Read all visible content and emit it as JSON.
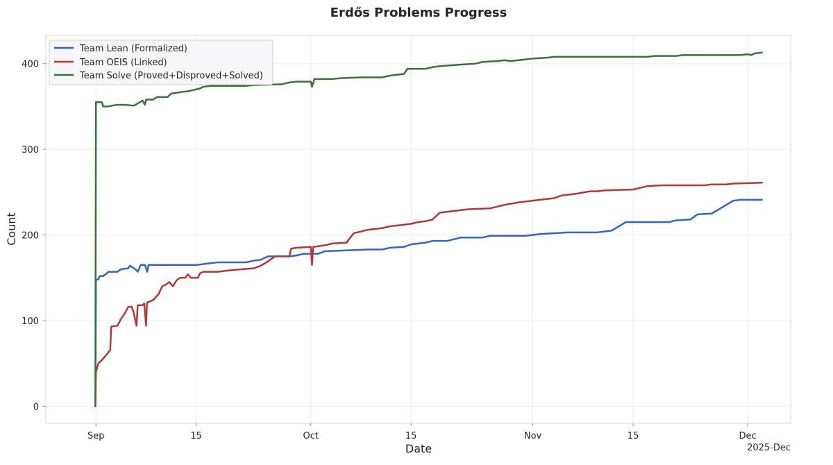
{
  "chart_data": {
    "type": "line",
    "title": "Erdős Problems Progress",
    "xlabel": "Date",
    "ylabel": "Count",
    "x_offset_label": "2025-Dec",
    "x_range": [
      "2025-08-25",
      "2025-12-07"
    ],
    "ylim": [
      -20,
      433
    ],
    "grid": true,
    "legend_position": "top-left",
    "x_ticks": [
      {
        "date": "2025-09-01",
        "label": "Sep"
      },
      {
        "date": "2025-09-15",
        "label": "15"
      },
      {
        "date": "2025-10-01",
        "label": "Oct"
      },
      {
        "date": "2025-10-15",
        "label": "15"
      },
      {
        "date": "2025-11-01",
        "label": "Nov"
      },
      {
        "date": "2025-11-15",
        "label": "15"
      },
      {
        "date": "2025-12-01",
        "label": "Dec"
      }
    ],
    "y_ticks": [
      0,
      100,
      200,
      300,
      400
    ],
    "series": [
      {
        "name": "Team Lean (Formalized)",
        "color": "#2f65c8",
        "points": [
          [
            "2025-08-31T22:00",
            0
          ],
          [
            "2025-09-01T00:00",
            148
          ],
          [
            "2025-09-01T08:00",
            148
          ],
          [
            "2025-09-01T12:00",
            152
          ],
          [
            "2025-09-02T00:00",
            152
          ],
          [
            "2025-09-02T12:00",
            155
          ],
          [
            "2025-09-02T18:00",
            157
          ],
          [
            "2025-09-04T00:00",
            157
          ],
          [
            "2025-09-04T12:00",
            160
          ],
          [
            "2025-09-05T12:00",
            161
          ],
          [
            "2025-09-05T18:00",
            164
          ],
          [
            "2025-09-06T12:00",
            160
          ],
          [
            "2025-09-06T20:00",
            157
          ],
          [
            "2025-09-07T06:00",
            165
          ],
          [
            "2025-09-07T20:00",
            165
          ],
          [
            "2025-09-08T04:00",
            157
          ],
          [
            "2025-09-08T08:00",
            165
          ],
          [
            "2025-09-15T00:00",
            165
          ],
          [
            "2025-09-16T00:00",
            166
          ],
          [
            "2025-09-17T00:00",
            167
          ],
          [
            "2025-09-18T00:00",
            168
          ],
          [
            "2025-09-22T00:00",
            168
          ],
          [
            "2025-09-23T00:00",
            170
          ],
          [
            "2025-09-24T00:00",
            171
          ],
          [
            "2025-09-25T00:00",
            175
          ],
          [
            "2025-09-28T00:00",
            175
          ],
          [
            "2025-09-29T00:00",
            176
          ],
          [
            "2025-09-30T00:00",
            178
          ],
          [
            "2025-10-02T00:00",
            178
          ],
          [
            "2025-10-03T00:00",
            181
          ],
          [
            "2025-10-06T00:00",
            182
          ],
          [
            "2025-10-09T00:00",
            183
          ],
          [
            "2025-10-11T00:00",
            183
          ],
          [
            "2025-10-12T00:00",
            185
          ],
          [
            "2025-10-14T00:00",
            186
          ],
          [
            "2025-10-15T00:00",
            189
          ],
          [
            "2025-10-17T00:00",
            191
          ],
          [
            "2025-10-18T00:00",
            193
          ],
          [
            "2025-10-20T00:00",
            193
          ],
          [
            "2025-10-22T00:00",
            197
          ],
          [
            "2025-10-25T00:00",
            197
          ],
          [
            "2025-10-26T00:00",
            199
          ],
          [
            "2025-10-31T00:00",
            199
          ],
          [
            "2025-11-02T00:00",
            201
          ],
          [
            "2025-11-04T00:00",
            202
          ],
          [
            "2025-11-06T00:00",
            203
          ],
          [
            "2025-11-10T00:00",
            203
          ],
          [
            "2025-11-12T00:00",
            205
          ],
          [
            "2025-11-13T00:00",
            210
          ],
          [
            "2025-11-14T00:00",
            215
          ],
          [
            "2025-11-20T00:00",
            215
          ],
          [
            "2025-11-21T00:00",
            217
          ],
          [
            "2025-11-23T00:00",
            218
          ],
          [
            "2025-11-24T00:00",
            224
          ],
          [
            "2025-11-26T00:00",
            225
          ],
          [
            "2025-11-27T00:00",
            230
          ],
          [
            "2025-11-28T00:00",
            235
          ],
          [
            "2025-11-29T00:00",
            240
          ],
          [
            "2025-11-30T00:00",
            241
          ],
          [
            "2025-12-03T00:00",
            241
          ]
        ]
      },
      {
        "name": "Team OEIS (Linked)",
        "color": "#b93434",
        "points": [
          [
            "2025-08-31T22:00",
            0
          ],
          [
            "2025-09-01T00:00",
            40
          ],
          [
            "2025-09-01T08:00",
            50
          ],
          [
            "2025-09-01T20:00",
            54
          ],
          [
            "2025-09-02T06:00",
            58
          ],
          [
            "2025-09-02T16:00",
            62
          ],
          [
            "2025-09-03T00:00",
            66
          ],
          [
            "2025-09-03T03:00",
            93
          ],
          [
            "2025-09-04T00:00",
            94
          ],
          [
            "2025-09-04T12:00",
            102
          ],
          [
            "2025-09-05T00:00",
            108
          ],
          [
            "2025-09-05T12:00",
            116
          ],
          [
            "2025-09-06T00:00",
            116
          ],
          [
            "2025-09-06T06:00",
            110
          ],
          [
            "2025-09-06T16:00",
            94
          ],
          [
            "2025-09-06T20:00",
            118
          ],
          [
            "2025-09-07T12:00",
            118
          ],
          [
            "2025-09-07T18:00",
            120
          ],
          [
            "2025-09-08T00:00",
            94
          ],
          [
            "2025-09-08T03:00",
            121
          ],
          [
            "2025-09-09T00:00",
            124
          ],
          [
            "2025-09-09T18:00",
            131
          ],
          [
            "2025-09-10T06:00",
            140
          ],
          [
            "2025-09-10T18:00",
            142
          ],
          [
            "2025-09-11T06:00",
            145
          ],
          [
            "2025-09-11T18:00",
            140
          ],
          [
            "2025-09-12T06:00",
            147
          ],
          [
            "2025-09-12T18:00",
            150
          ],
          [
            "2025-09-13T12:00",
            150
          ],
          [
            "2025-09-13T20:00",
            154
          ],
          [
            "2025-09-14T06:00",
            150
          ],
          [
            "2025-09-15T06:00",
            150
          ],
          [
            "2025-09-15T12:00",
            155
          ],
          [
            "2025-09-16T00:00",
            157
          ],
          [
            "2025-09-18T00:00",
            157
          ],
          [
            "2025-09-20T00:00",
            159
          ],
          [
            "2025-09-23T00:00",
            161
          ],
          [
            "2025-09-24T00:00",
            164
          ],
          [
            "2025-09-25T00:00",
            169
          ],
          [
            "2025-09-26T00:00",
            175
          ],
          [
            "2025-09-28T00:00",
            175
          ],
          [
            "2025-09-28T06:00",
            184
          ],
          [
            "2025-09-29T00:00",
            185
          ],
          [
            "2025-10-01T00:00",
            186
          ],
          [
            "2025-10-01T04:00",
            165
          ],
          [
            "2025-10-01T08:00",
            186
          ],
          [
            "2025-10-03T00:00",
            188
          ],
          [
            "2025-10-04T00:00",
            190
          ],
          [
            "2025-10-06T00:00",
            191
          ],
          [
            "2025-10-06T12:00",
            197
          ],
          [
            "2025-10-07T00:00",
            202
          ],
          [
            "2025-10-08T00:00",
            204
          ],
          [
            "2025-10-09T00:00",
            206
          ],
          [
            "2025-10-11T00:00",
            208
          ],
          [
            "2025-10-12T00:00",
            210
          ],
          [
            "2025-10-14T00:00",
            212
          ],
          [
            "2025-10-15T00:00",
            213
          ],
          [
            "2025-10-16T00:00",
            215
          ],
          [
            "2025-10-17T00:00",
            216
          ],
          [
            "2025-10-18T00:00",
            218
          ],
          [
            "2025-10-19T00:00",
            226
          ],
          [
            "2025-10-20T00:00",
            227
          ],
          [
            "2025-10-21T00:00",
            228
          ],
          [
            "2025-10-23T00:00",
            230
          ],
          [
            "2025-10-26T00:00",
            231
          ],
          [
            "2025-10-27T00:00",
            233
          ],
          [
            "2025-10-28T00:00",
            235
          ],
          [
            "2025-10-30T00:00",
            238
          ],
          [
            "2025-10-31T00:00",
            239
          ],
          [
            "2025-11-01T00:00",
            240
          ],
          [
            "2025-11-02T00:00",
            241
          ],
          [
            "2025-11-04T00:00",
            243
          ],
          [
            "2025-11-05T00:00",
            246
          ],
          [
            "2025-11-06T00:00",
            247
          ],
          [
            "2025-11-07T00:00",
            248
          ],
          [
            "2025-11-09T00:00",
            251
          ],
          [
            "2025-11-10T00:00",
            251
          ],
          [
            "2025-11-11T00:00",
            252
          ],
          [
            "2025-11-15T00:00",
            253
          ],
          [
            "2025-11-16T00:00",
            255
          ],
          [
            "2025-11-17T00:00",
            257
          ],
          [
            "2025-11-19T00:00",
            258
          ],
          [
            "2025-11-25T00:00",
            258
          ],
          [
            "2025-11-26T00:00",
            259
          ],
          [
            "2025-11-28T00:00",
            259
          ],
          [
            "2025-11-29T00:00",
            260
          ],
          [
            "2025-12-03T00:00",
            261
          ]
        ]
      },
      {
        "name": "Team Solve (Proved+Disproved+Solved)",
        "color": "#357435",
        "points": [
          [
            "2025-08-31T22:00",
            0
          ],
          [
            "2025-09-01T00:00",
            355
          ],
          [
            "2025-09-01T20:00",
            355
          ],
          [
            "2025-09-02T00:00",
            350
          ],
          [
            "2025-09-02T18:00",
            350
          ],
          [
            "2025-09-03T06:00",
            351
          ],
          [
            "2025-09-04T00:00",
            352
          ],
          [
            "2025-09-05T00:00",
            352
          ],
          [
            "2025-09-06T06:00",
            351
          ],
          [
            "2025-09-06T18:00",
            353
          ],
          [
            "2025-09-07T12:00",
            357
          ],
          [
            "2025-09-07T20:00",
            352
          ],
          [
            "2025-09-08T00:00",
            358
          ],
          [
            "2025-09-09T00:00",
            358
          ],
          [
            "2025-09-09T12:00",
            361
          ],
          [
            "2025-09-11T00:00",
            361
          ],
          [
            "2025-09-11T12:00",
            365
          ],
          [
            "2025-09-13T00:00",
            367
          ],
          [
            "2025-09-14T00:00",
            368
          ],
          [
            "2025-09-15T12:00",
            371
          ],
          [
            "2025-09-16T00:00",
            373
          ],
          [
            "2025-09-17T00:00",
            374
          ],
          [
            "2025-09-22T00:00",
            374
          ],
          [
            "2025-09-23T00:00",
            375
          ],
          [
            "2025-09-27T00:00",
            376
          ],
          [
            "2025-09-28T00:00",
            378
          ],
          [
            "2025-09-29T00:00",
            379
          ],
          [
            "2025-10-01T00:00",
            379
          ],
          [
            "2025-10-01T04:00",
            373
          ],
          [
            "2025-10-01T12:00",
            382
          ],
          [
            "2025-10-04T00:00",
            382
          ],
          [
            "2025-10-05T00:00",
            383
          ],
          [
            "2025-10-08T00:00",
            384
          ],
          [
            "2025-10-11T00:00",
            384
          ],
          [
            "2025-10-12T00:00",
            386
          ],
          [
            "2025-10-14T00:00",
            388
          ],
          [
            "2025-10-14T12:00",
            394
          ],
          [
            "2025-10-17T00:00",
            394
          ],
          [
            "2025-10-18T00:00",
            396
          ],
          [
            "2025-10-19T00:00",
            397
          ],
          [
            "2025-10-22T00:00",
            399
          ],
          [
            "2025-10-24T00:00",
            400
          ],
          [
            "2025-10-25T00:00",
            402
          ],
          [
            "2025-10-27T00:00",
            403
          ],
          [
            "2025-10-28T00:00",
            404
          ],
          [
            "2025-10-29T00:00",
            403
          ],
          [
            "2025-10-30T00:00",
            404
          ],
          [
            "2025-11-01T00:00",
            406
          ],
          [
            "2025-11-03T00:00",
            407
          ],
          [
            "2025-11-04T00:00",
            408
          ],
          [
            "2025-11-17T00:00",
            408
          ],
          [
            "2025-11-18T00:00",
            409
          ],
          [
            "2025-11-21T00:00",
            409
          ],
          [
            "2025-11-22T00:00",
            410
          ],
          [
            "2025-11-30T00:00",
            410
          ],
          [
            "2025-12-01T00:00",
            411
          ],
          [
            "2025-12-01T12:00",
            410
          ],
          [
            "2025-12-02T00:00",
            412
          ],
          [
            "2025-12-03T00:00",
            413
          ]
        ]
      }
    ]
  }
}
